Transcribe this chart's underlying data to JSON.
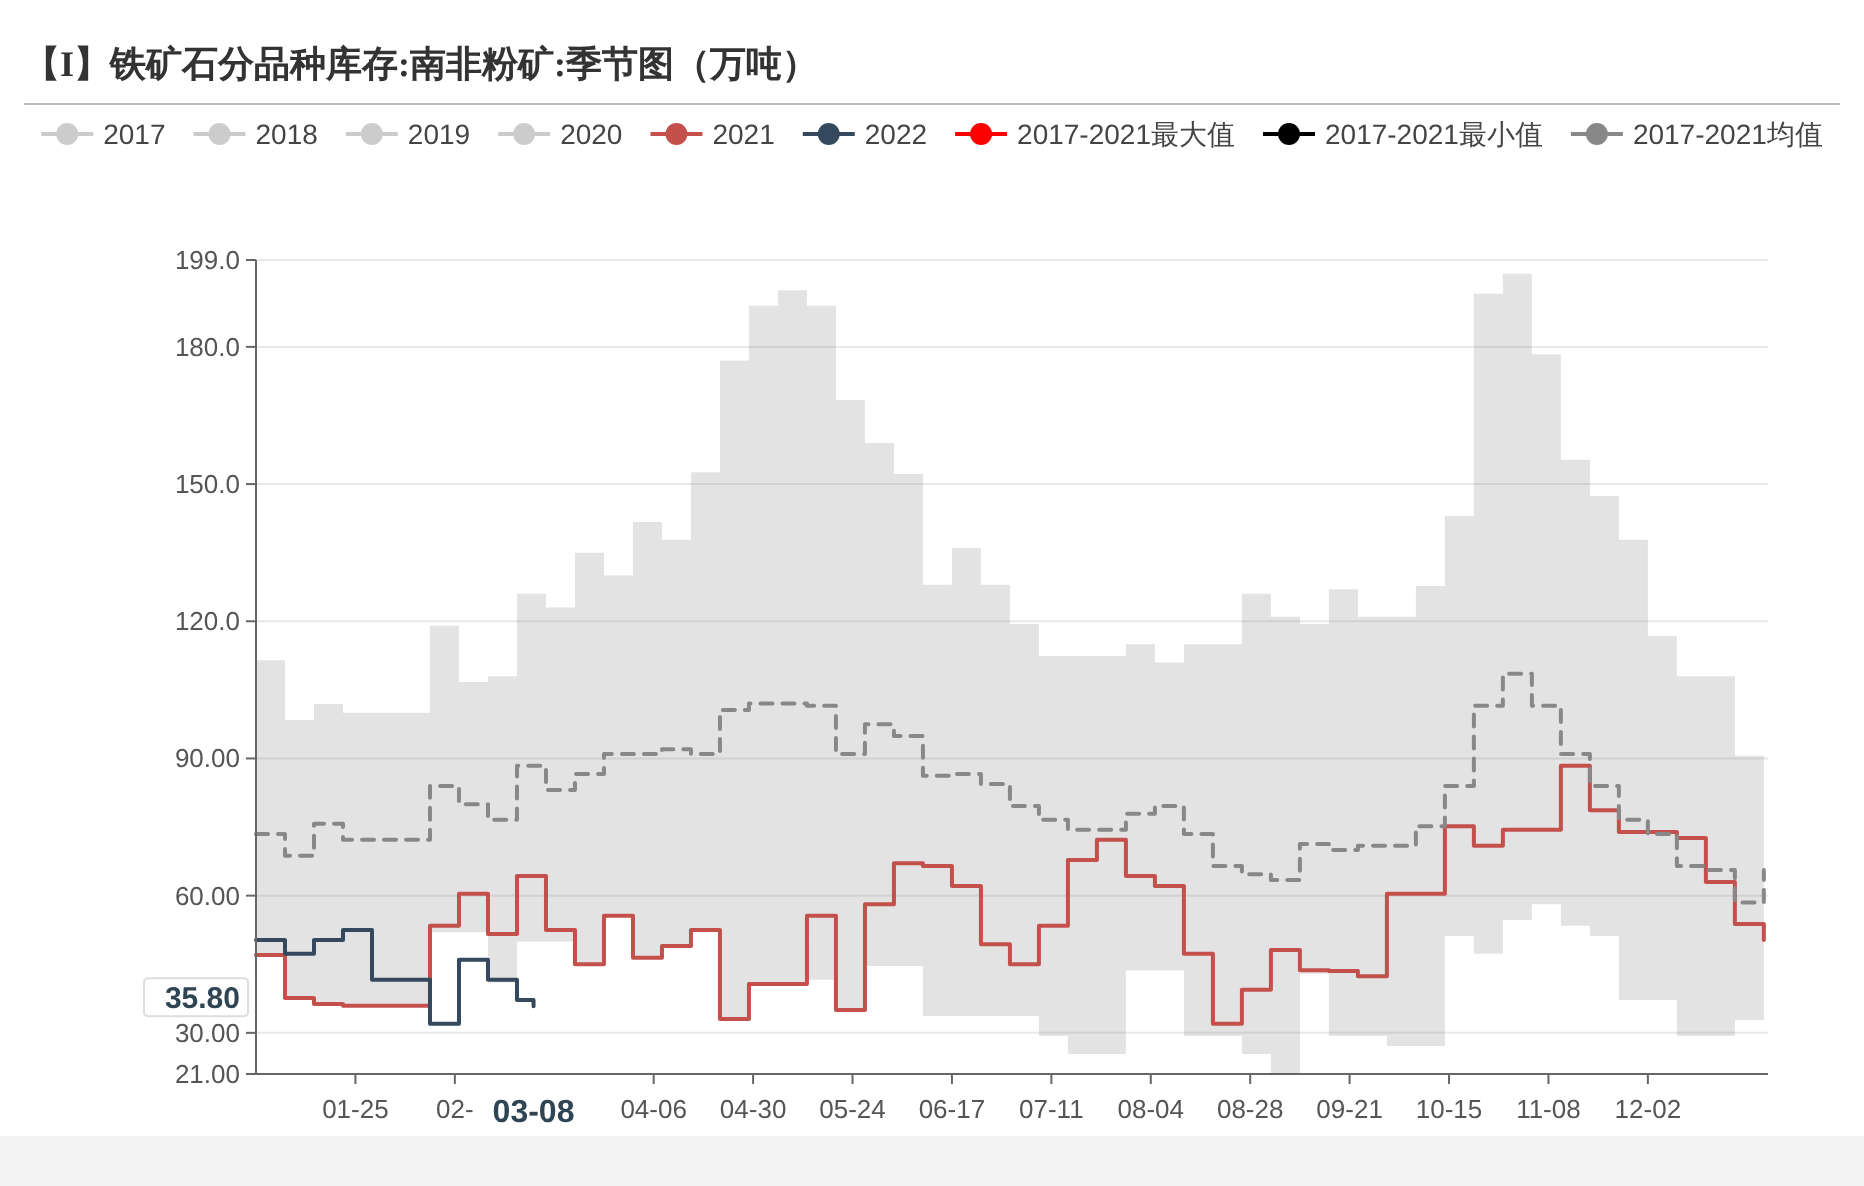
{
  "chart_data": {
    "type": "step",
    "title": "【I】铁矿石分品种库存:南非粉矿:季节图（万吨）",
    "x": [
      "--01-01",
      "--01-08",
      "--01-15",
      "--01-22",
      "--01-29",
      "--02-05",
      "--02-12",
      "--02-19",
      "--02-26",
      "--03-04",
      "--03-11",
      "--03-18",
      "--03-25",
      "--04-01",
      "--04-08",
      "--04-15",
      "--04-22",
      "--04-29",
      "--05-06",
      "--05-13",
      "--05-20",
      "--05-27",
      "--06-03",
      "--06-10",
      "--06-17",
      "--06-24",
      "--07-01",
      "--07-08",
      "--07-15",
      "--07-22",
      "--07-29",
      "--08-05",
      "--08-12",
      "--08-19",
      "--08-26",
      "--09-02",
      "--09-09",
      "--09-16",
      "--09-23",
      "--09-30",
      "--10-07",
      "--10-14",
      "--10-21",
      "--10-28",
      "--11-04",
      "--11-11",
      "--11-18",
      "--11-25",
      "--12-02",
      "--12-09",
      "--12-16",
      "--12-23",
      "--12-30"
    ],
    "series": [
      {
        "name": "2017",
        "color": "#cccccc",
        "values": [
          null,
          null,
          null,
          null,
          null,
          null,
          null,
          null,
          null,
          null,
          null,
          null,
          null,
          null,
          null,
          null,
          null,
          null,
          null,
          null,
          null,
          null,
          null,
          null,
          null,
          null,
          null,
          null,
          null,
          null,
          null,
          null,
          null,
          null,
          null,
          null,
          null,
          null,
          null,
          null,
          null,
          null,
          null,
          null,
          null,
          null,
          null,
          null,
          null,
          null,
          null,
          null,
          null
        ]
      },
      {
        "name": "2018",
        "color": "#cccccc",
        "values": [
          null,
          null,
          null,
          null,
          null,
          null,
          null,
          null,
          null,
          null,
          null,
          null,
          null,
          null,
          null,
          null,
          null,
          null,
          null,
          null,
          null,
          null,
          null,
          null,
          null,
          null,
          null,
          null,
          null,
          null,
          null,
          null,
          null,
          null,
          null,
          null,
          null,
          null,
          null,
          null,
          null,
          null,
          null,
          null,
          null,
          null,
          null,
          null,
          null,
          null,
          null,
          null,
          null
        ]
      },
      {
        "name": "2019",
        "color": "#cccccc",
        "values": [
          null,
          null,
          null,
          null,
          null,
          null,
          null,
          null,
          null,
          null,
          null,
          null,
          null,
          null,
          null,
          null,
          null,
          null,
          null,
          null,
          null,
          null,
          null,
          null,
          null,
          null,
          null,
          null,
          null,
          null,
          null,
          null,
          null,
          null,
          null,
          null,
          null,
          null,
          null,
          null,
          null,
          null,
          null,
          null,
          null,
          null,
          null,
          null,
          null,
          null,
          null,
          null,
          null
        ]
      },
      {
        "name": "2020",
        "color": "#cccccc",
        "values": [
          null,
          null,
          null,
          null,
          null,
          null,
          null,
          null,
          null,
          null,
          null,
          null,
          null,
          null,
          null,
          null,
          null,
          null,
          null,
          null,
          null,
          null,
          null,
          null,
          null,
          null,
          null,
          null,
          null,
          null,
          null,
          null,
          null,
          null,
          null,
          null,
          null,
          null,
          null,
          null,
          null,
          null,
          null,
          null,
          null,
          null,
          null,
          null,
          null,
          null,
          null,
          null,
          null
        ]
      },
      {
        "name": "2021",
        "color": "#c4504c",
        "values": [
          47,
          37.6,
          36.3,
          35.9,
          35.9,
          35.9,
          53.4,
          60.4,
          51.6,
          64.3,
          52.5,
          45,
          55.6,
          46.4,
          49,
          52.5,
          33,
          40.7,
          40.7,
          55.6,
          35,
          58.1,
          67.1,
          66.5,
          62.1,
          49.4,
          45,
          53.4,
          67.8,
          72.2,
          64.3,
          62.1,
          47.3,
          32,
          39.4,
          48.1,
          43.7,
          43.5,
          42.4,
          60.4,
          60.4,
          75.2,
          70.9,
          74.4,
          74.4,
          88.4,
          78.7,
          73.9,
          73.9,
          72.6,
          63,
          53.8,
          50.3
        ]
      },
      {
        "name": "2022",
        "color": "#34495e",
        "x": [
          "--01-01",
          "--01-08",
          "--01-15",
          "--01-22",
          "--01-29",
          "--02-05",
          "--02-12",
          "--02-19",
          "--02-26",
          "--03-04",
          "--03-08"
        ],
        "values": [
          50.3,
          47.3,
          50.3,
          52.5,
          41.6,
          41.6,
          32,
          46,
          41.6,
          37.2,
          35.8
        ]
      },
      {
        "name": "2017-2021最大值",
        "color": "#ff0000",
        "values": [
          null,
          null,
          null,
          null,
          null,
          null,
          null,
          null,
          null,
          null,
          null,
          null,
          null,
          null,
          null,
          null,
          null,
          null,
          null,
          null,
          null,
          null,
          null,
          null,
          null,
          null,
          null,
          null,
          null,
          null,
          null,
          null,
          null,
          null,
          null,
          null,
          null,
          null,
          null,
          null,
          null,
          null,
          null,
          null,
          null,
          null,
          null,
          null,
          null,
          null,
          null,
          null,
          null
        ]
      },
      {
        "name": "2017-2021最小值",
        "color": "#000000",
        "values": [
          null,
          null,
          null,
          null,
          null,
          null,
          null,
          null,
          null,
          null,
          null,
          null,
          null,
          null,
          null,
          null,
          null,
          null,
          null,
          null,
          null,
          null,
          null,
          null,
          null,
          null,
          null,
          null,
          null,
          null,
          null,
          null,
          null,
          null,
          null,
          null,
          null,
          null,
          null,
          null,
          null,
          null,
          null,
          null,
          null,
          null,
          null,
          null,
          null,
          null,
          null,
          null,
          null
        ]
      },
      {
        "name": "2017-2021均值",
        "color": "#888888",
        "line_style": "dashed",
        "values": [
          73.5,
          68.7,
          75.7,
          72.2,
          72.2,
          72.2,
          84,
          80,
          76.6,
          88.4,
          83.1,
          86.6,
          91,
          91,
          92,
          91,
          100.6,
          102,
          102,
          101.5,
          91,
          97.5,
          94.9,
          86.2,
          86.6,
          84.4,
          79.6,
          76.6,
          74.4,
          74.4,
          77.9,
          79.6,
          73.5,
          66.5,
          64.7,
          63.4,
          71.3,
          70,
          70.9,
          70.9,
          75.2,
          84,
          101.5,
          108.5,
          101.5,
          91,
          84,
          76.6,
          73.5,
          66.5,
          65.6,
          58.5,
          65.6
        ],
        "lower": [
          47,
          37.6,
          36.3,
          35.9,
          35.9,
          35.9,
          52,
          52,
          41,
          50,
          50,
          45,
          55.6,
          46.4,
          49,
          52.5,
          33,
          40.7,
          40.7,
          41.6,
          35,
          44.6,
          44.6,
          33.7,
          33.7,
          33.7,
          33.7,
          29.3,
          25.4,
          25.4,
          43.7,
          43.7,
          29.3,
          29.3,
          25.4,
          21,
          42.9,
          29.3,
          29.3,
          27.1,
          27.1,
          51.2,
          47.3,
          54.7,
          58.1,
          53.4,
          51.2,
          37.2,
          37.2,
          29.3,
          29.3,
          32.8,
          37.2
        ],
        "upper": [
          111.5,
          98.4,
          101.9,
          100,
          100,
          100,
          119,
          106.7,
          108,
          126,
          123,
          135,
          130,
          141.7,
          137.8,
          152.6,
          177,
          189,
          192.4,
          189,
          168.4,
          159,
          152.2,
          128,
          136,
          128,
          119.4,
          112.4,
          112.4,
          112.4,
          115,
          111,
          115,
          115,
          126,
          121,
          119.4,
          127,
          121,
          121,
          127.7,
          143,
          191.6,
          196,
          178.4,
          155.3,
          147.4,
          137.8,
          116.8,
          108,
          108,
          90.6,
          108
        ]
      }
    ],
    "xlim": [
      "--01-01",
      "--12-31"
    ],
    "xticks": [
      {
        "value": "--01-25",
        "label": "01-25"
      },
      {
        "value": "--02-18",
        "label": "02-"
      },
      {
        "value": "--04-06",
        "label": "04-06"
      },
      {
        "value": "--04-30",
        "label": "04-30"
      },
      {
        "value": "--05-24",
        "label": "05-24"
      },
      {
        "value": "--06-17",
        "label": "06-17"
      },
      {
        "value": "--07-11",
        "label": "07-11"
      },
      {
        "value": "--08-04",
        "label": "08-04"
      },
      {
        "value": "--08-28",
        "label": "08-28"
      },
      {
        "value": "--09-21",
        "label": "09-21"
      },
      {
        "value": "--10-15",
        "label": "10-15"
      },
      {
        "value": "--11-08",
        "label": "11-08"
      },
      {
        "value": "--12-02",
        "label": "12-02"
      }
    ],
    "ylim": [
      21,
      199
    ],
    "yticks": [
      {
        "value": 21,
        "label": "21.00"
      },
      {
        "value": 30,
        "label": "30.00"
      },
      {
        "value": 60,
        "label": "60.00"
      },
      {
        "value": 90,
        "label": "90.00"
      },
      {
        "value": 120,
        "label": "120.0"
      },
      {
        "value": 150,
        "label": "150.0"
      },
      {
        "value": 180,
        "label": "180.0"
      },
      {
        "value": 199,
        "label": "199.0"
      }
    ],
    "annotations": [
      "35.80",
      "03-08"
    ],
    "grid": "y",
    "legend": "top",
    "marker": "none"
  }
}
